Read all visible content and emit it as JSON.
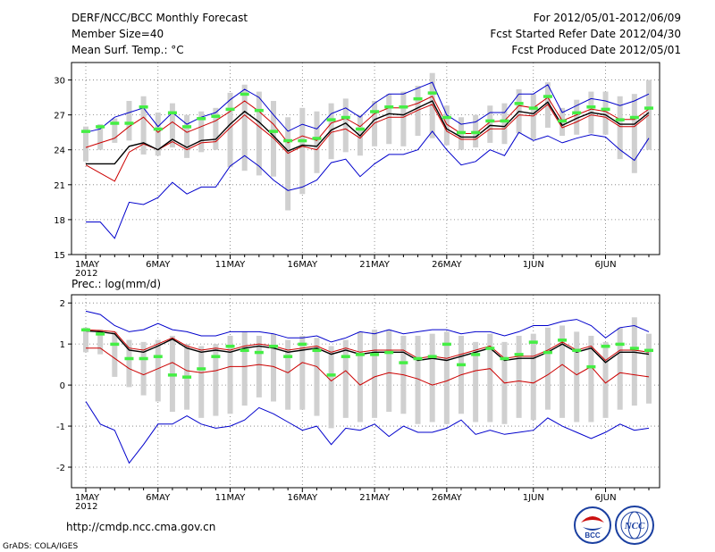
{
  "header": {
    "title": "DERF/NCC/BCC Monthly Forecast",
    "member_size": "Member Size=40",
    "variable": "Mean Surf. Temp.: °C",
    "period": "For 2012/05/01-2012/06/09",
    "started": "Fcst Started Refer Date 2012/04/30",
    "produced": "Fcst Produced Date 2012/05/01"
  },
  "panel2_label": "Prec.: log(mm/d)",
  "footer": {
    "url": "http://cmdp.ncc.cma.gov.cn",
    "grads": "GrADS: COLA/IGES",
    "logo_bcc": "BCC",
    "logo_ncc": "NCC"
  },
  "colors": {
    "max_min": "#0000cc",
    "spread": "#cc0000",
    "mean": "#000000",
    "bar": "#d0d0d0",
    "marker": "#44ee44"
  },
  "chart_data": [
    {
      "type": "line",
      "title": "Mean Surf. Temp.: °C",
      "x_ticks": [
        "1MAY",
        "6MAY",
        "11MAY",
        "16MAY",
        "21MAY",
        "26MAY",
        "1JUN",
        "6JUN"
      ],
      "x_tick_days": [
        1,
        6,
        11,
        16,
        21,
        26,
        32,
        37
      ],
      "x_sublabel": "2012",
      "ylim": [
        15,
        31.5
      ],
      "y_ticks": [
        15,
        18,
        21,
        24,
        27,
        30
      ],
      "days": 40,
      "series": {
        "max": [
          25.5,
          25.8,
          26.8,
          27.2,
          27.6,
          26.0,
          27.2,
          26.2,
          26.8,
          27.2,
          28.3,
          29.2,
          28.5,
          27.0,
          25.6,
          26.2,
          25.8,
          27.1,
          27.6,
          26.8,
          28.0,
          28.8,
          28.8,
          29.3,
          29.8,
          27.0,
          26.2,
          26.4,
          27.2,
          27.2,
          28.8,
          28.8,
          29.6,
          27.2,
          27.8,
          28.4,
          28.2,
          27.8,
          28.2,
          28.8
        ],
        "upper": [
          24.2,
          24.6,
          25.0,
          26.0,
          26.8,
          25.5,
          26.4,
          25.5,
          26.0,
          26.5,
          27.3,
          28.2,
          27.3,
          26.2,
          24.6,
          25.2,
          24.8,
          26.3,
          26.7,
          26.0,
          27.1,
          27.6,
          27.6,
          28.0,
          28.6,
          26.2,
          25.4,
          25.4,
          26.4,
          26.5,
          27.8,
          27.6,
          28.5,
          26.5,
          27.0,
          27.5,
          27.3,
          26.6,
          26.6,
          27.5
        ],
        "mean": [
          22.8,
          22.8,
          22.8,
          24.3,
          24.6,
          24.0,
          24.9,
          24.2,
          24.8,
          24.9,
          26.2,
          27.3,
          26.4,
          25.2,
          23.9,
          24.4,
          24.3,
          25.7,
          26.3,
          25.2,
          26.6,
          27.1,
          27.0,
          27.6,
          28.2,
          25.8,
          25.1,
          25.1,
          26.1,
          26.0,
          27.3,
          27.1,
          28.1,
          26.1,
          26.7,
          27.2,
          27.0,
          26.2,
          26.2,
          27.2
        ],
        "lower": [
          22.7,
          22.0,
          21.3,
          23.8,
          24.5,
          24.0,
          24.7,
          24.0,
          24.6,
          24.7,
          25.9,
          27.0,
          26.0,
          25.0,
          23.7,
          24.3,
          24.0,
          25.5,
          25.8,
          25.0,
          26.3,
          26.8,
          26.8,
          27.4,
          27.9,
          25.6,
          24.9,
          24.9,
          25.8,
          25.8,
          27.0,
          26.9,
          27.9,
          25.9,
          26.4,
          27.0,
          26.8,
          26.0,
          26.0,
          27.0
        ],
        "min": [
          17.8,
          17.8,
          16.4,
          19.5,
          19.3,
          19.9,
          21.2,
          20.2,
          20.8,
          20.8,
          22.6,
          23.5,
          22.6,
          21.4,
          20.5,
          20.8,
          21.4,
          22.9,
          23.2,
          21.7,
          22.8,
          23.6,
          23.6,
          24.0,
          25.6,
          24.0,
          22.7,
          23.0,
          24.0,
          23.5,
          25.5,
          24.8,
          25.2,
          24.6,
          25.0,
          25.3,
          25.1,
          24.0,
          23.1,
          25.0
        ],
        "bar_high": [
          26.0,
          26.2,
          26.7,
          28.2,
          28.6,
          27.2,
          28.0,
          27.0,
          27.3,
          27.6,
          28.9,
          29.6,
          29.0,
          28.2,
          26.8,
          27.6,
          27.3,
          28.0,
          28.4,
          27.0,
          28.2,
          28.8,
          29.0,
          29.5,
          30.6,
          27.8,
          26.8,
          27.0,
          27.8,
          28.0,
          29.2,
          28.8,
          29.8,
          27.6,
          28.3,
          29.0,
          29.0,
          28.6,
          28.8,
          30.0
        ],
        "bar_low": [
          23.0,
          24.0,
          24.6,
          24.8,
          23.6,
          23.5,
          24.2,
          23.3,
          23.8,
          24.0,
          22.5,
          22.2,
          21.8,
          21.7,
          18.8,
          20.2,
          22.0,
          23.2,
          23.8,
          23.5,
          24.3,
          24.5,
          24.3,
          25.2,
          25.0,
          24.4,
          24.0,
          24.2,
          24.6,
          24.5,
          25.4,
          24.9,
          25.9,
          25.2,
          25.3,
          25.4,
          25.3,
          23.2,
          22.0,
          24.0
        ],
        "marker": [
          25.6,
          26.0,
          26.3,
          26.3,
          27.7,
          25.8,
          27.2,
          26.0,
          26.7,
          26.9,
          27.5,
          28.8,
          27.4,
          25.6,
          24.8,
          24.8,
          25.0,
          26.6,
          26.8,
          25.8,
          27.3,
          27.7,
          27.7,
          28.4,
          28.9,
          26.8,
          25.5,
          25.5,
          26.5,
          26.5,
          28.0,
          27.6,
          28.6,
          26.5,
          27.2,
          27.7,
          27.5,
          26.6,
          26.8,
          27.6
        ]
      }
    },
    {
      "type": "line",
      "title": "Prec.: log(mm/d)",
      "x_ticks": [
        "1MAY",
        "6MAY",
        "11MAY",
        "16MAY",
        "21MAY",
        "26MAY",
        "1JUN",
        "6JUN"
      ],
      "x_tick_days": [
        1,
        6,
        11,
        16,
        21,
        26,
        32,
        37
      ],
      "x_sublabel": "2012",
      "ylim": [
        -2.5,
        2.2
      ],
      "y_ticks": [
        -2,
        -1,
        0,
        1,
        2
      ],
      "days": 40,
      "series": {
        "max": [
          1.8,
          1.72,
          1.45,
          1.3,
          1.35,
          1.5,
          1.35,
          1.3,
          1.2,
          1.2,
          1.3,
          1.3,
          1.3,
          1.25,
          1.15,
          1.15,
          1.2,
          1.05,
          1.15,
          1.3,
          1.25,
          1.35,
          1.25,
          1.3,
          1.35,
          1.35,
          1.25,
          1.3,
          1.3,
          1.2,
          1.3,
          1.45,
          1.45,
          1.55,
          1.6,
          1.45,
          1.15,
          1.4,
          1.45,
          1.3
        ],
        "upper": [
          1.35,
          1.33,
          1.3,
          0.9,
          0.85,
          1.0,
          1.15,
          0.95,
          0.85,
          0.9,
          0.85,
          0.95,
          1.0,
          0.95,
          0.85,
          0.9,
          0.95,
          0.8,
          0.9,
          0.8,
          0.85,
          0.85,
          0.85,
          0.65,
          0.7,
          0.65,
          0.75,
          0.85,
          0.95,
          0.65,
          0.7,
          0.7,
          0.85,
          1.05,
          0.85,
          0.95,
          0.6,
          0.85,
          0.85,
          0.8
        ],
        "mean": [
          1.32,
          1.3,
          1.25,
          0.85,
          0.8,
          0.95,
          1.12,
          0.9,
          0.8,
          0.85,
          0.8,
          0.9,
          0.95,
          0.9,
          0.8,
          0.85,
          0.9,
          0.75,
          0.85,
          0.75,
          0.8,
          0.8,
          0.8,
          0.6,
          0.65,
          0.6,
          0.7,
          0.8,
          0.9,
          0.6,
          0.65,
          0.65,
          0.8,
          1.0,
          0.8,
          0.9,
          0.55,
          0.8,
          0.8,
          0.75
        ],
        "lower": [
          0.9,
          0.9,
          0.65,
          0.4,
          0.25,
          0.4,
          0.55,
          0.35,
          0.3,
          0.35,
          0.45,
          0.45,
          0.5,
          0.45,
          0.3,
          0.55,
          0.45,
          0.1,
          0.35,
          0.0,
          0.2,
          0.3,
          0.25,
          0.15,
          0.0,
          0.1,
          0.25,
          0.35,
          0.4,
          0.05,
          0.1,
          0.05,
          0.25,
          0.5,
          0.25,
          0.45,
          0.05,
          0.3,
          0.25,
          0.2
        ],
        "min": [
          -0.4,
          -0.95,
          -1.1,
          -1.9,
          -1.45,
          -0.95,
          -0.95,
          -0.75,
          -0.95,
          -1.05,
          -1.0,
          -0.85,
          -0.55,
          -0.7,
          -0.9,
          -1.1,
          -1.0,
          -1.45,
          -1.05,
          -1.1,
          -0.95,
          -1.25,
          -1.0,
          -1.15,
          -1.15,
          -1.05,
          -0.85,
          -1.2,
          -1.1,
          -1.2,
          -1.15,
          -1.1,
          -0.8,
          -1.0,
          -1.15,
          -1.3,
          -1.15,
          -0.95,
          -1.1,
          -1.05
        ],
        "bar_high": [
          1.4,
          1.35,
          1.3,
          1.1,
          1.05,
          1.1,
          1.2,
          1.0,
          0.95,
          1.0,
          1.2,
          1.3,
          1.2,
          1.25,
          1.1,
          1.2,
          1.15,
          0.95,
          1.1,
          1.3,
          1.35,
          1.35,
          1.2,
          1.2,
          1.25,
          1.3,
          1.2,
          1.05,
          1.25,
          1.05,
          1.2,
          1.25,
          1.4,
          1.45,
          1.3,
          1.2,
          1.05,
          1.4,
          1.65,
          1.25
        ],
        "bar_low": [
          0.8,
          0.75,
          0.2,
          -0.05,
          -0.25,
          -0.4,
          -0.65,
          -0.6,
          -0.8,
          -0.75,
          -0.7,
          -0.5,
          -0.3,
          -0.4,
          -0.6,
          -0.6,
          -0.75,
          -1.05,
          -0.8,
          -0.9,
          -0.8,
          -0.65,
          -0.7,
          -0.95,
          -0.9,
          -0.95,
          -0.7,
          -0.9,
          -0.9,
          -0.95,
          -0.8,
          -0.85,
          -0.6,
          -0.8,
          -0.9,
          -0.9,
          -0.8,
          -0.6,
          -0.5,
          -0.45
        ],
        "marker": [
          1.35,
          1.25,
          1.0,
          0.65,
          0.65,
          0.7,
          0.25,
          0.2,
          0.4,
          0.7,
          0.95,
          0.85,
          0.8,
          0.95,
          0.7,
          1.0,
          0.85,
          0.25,
          0.7,
          0.75,
          0.75,
          0.8,
          0.55,
          0.65,
          0.7,
          1.0,
          0.5,
          0.75,
          0.9,
          0.65,
          0.75,
          1.05,
          0.8,
          1.1,
          0.85,
          0.45,
          0.95,
          1.0,
          0.9,
          0.85
        ]
      }
    }
  ]
}
